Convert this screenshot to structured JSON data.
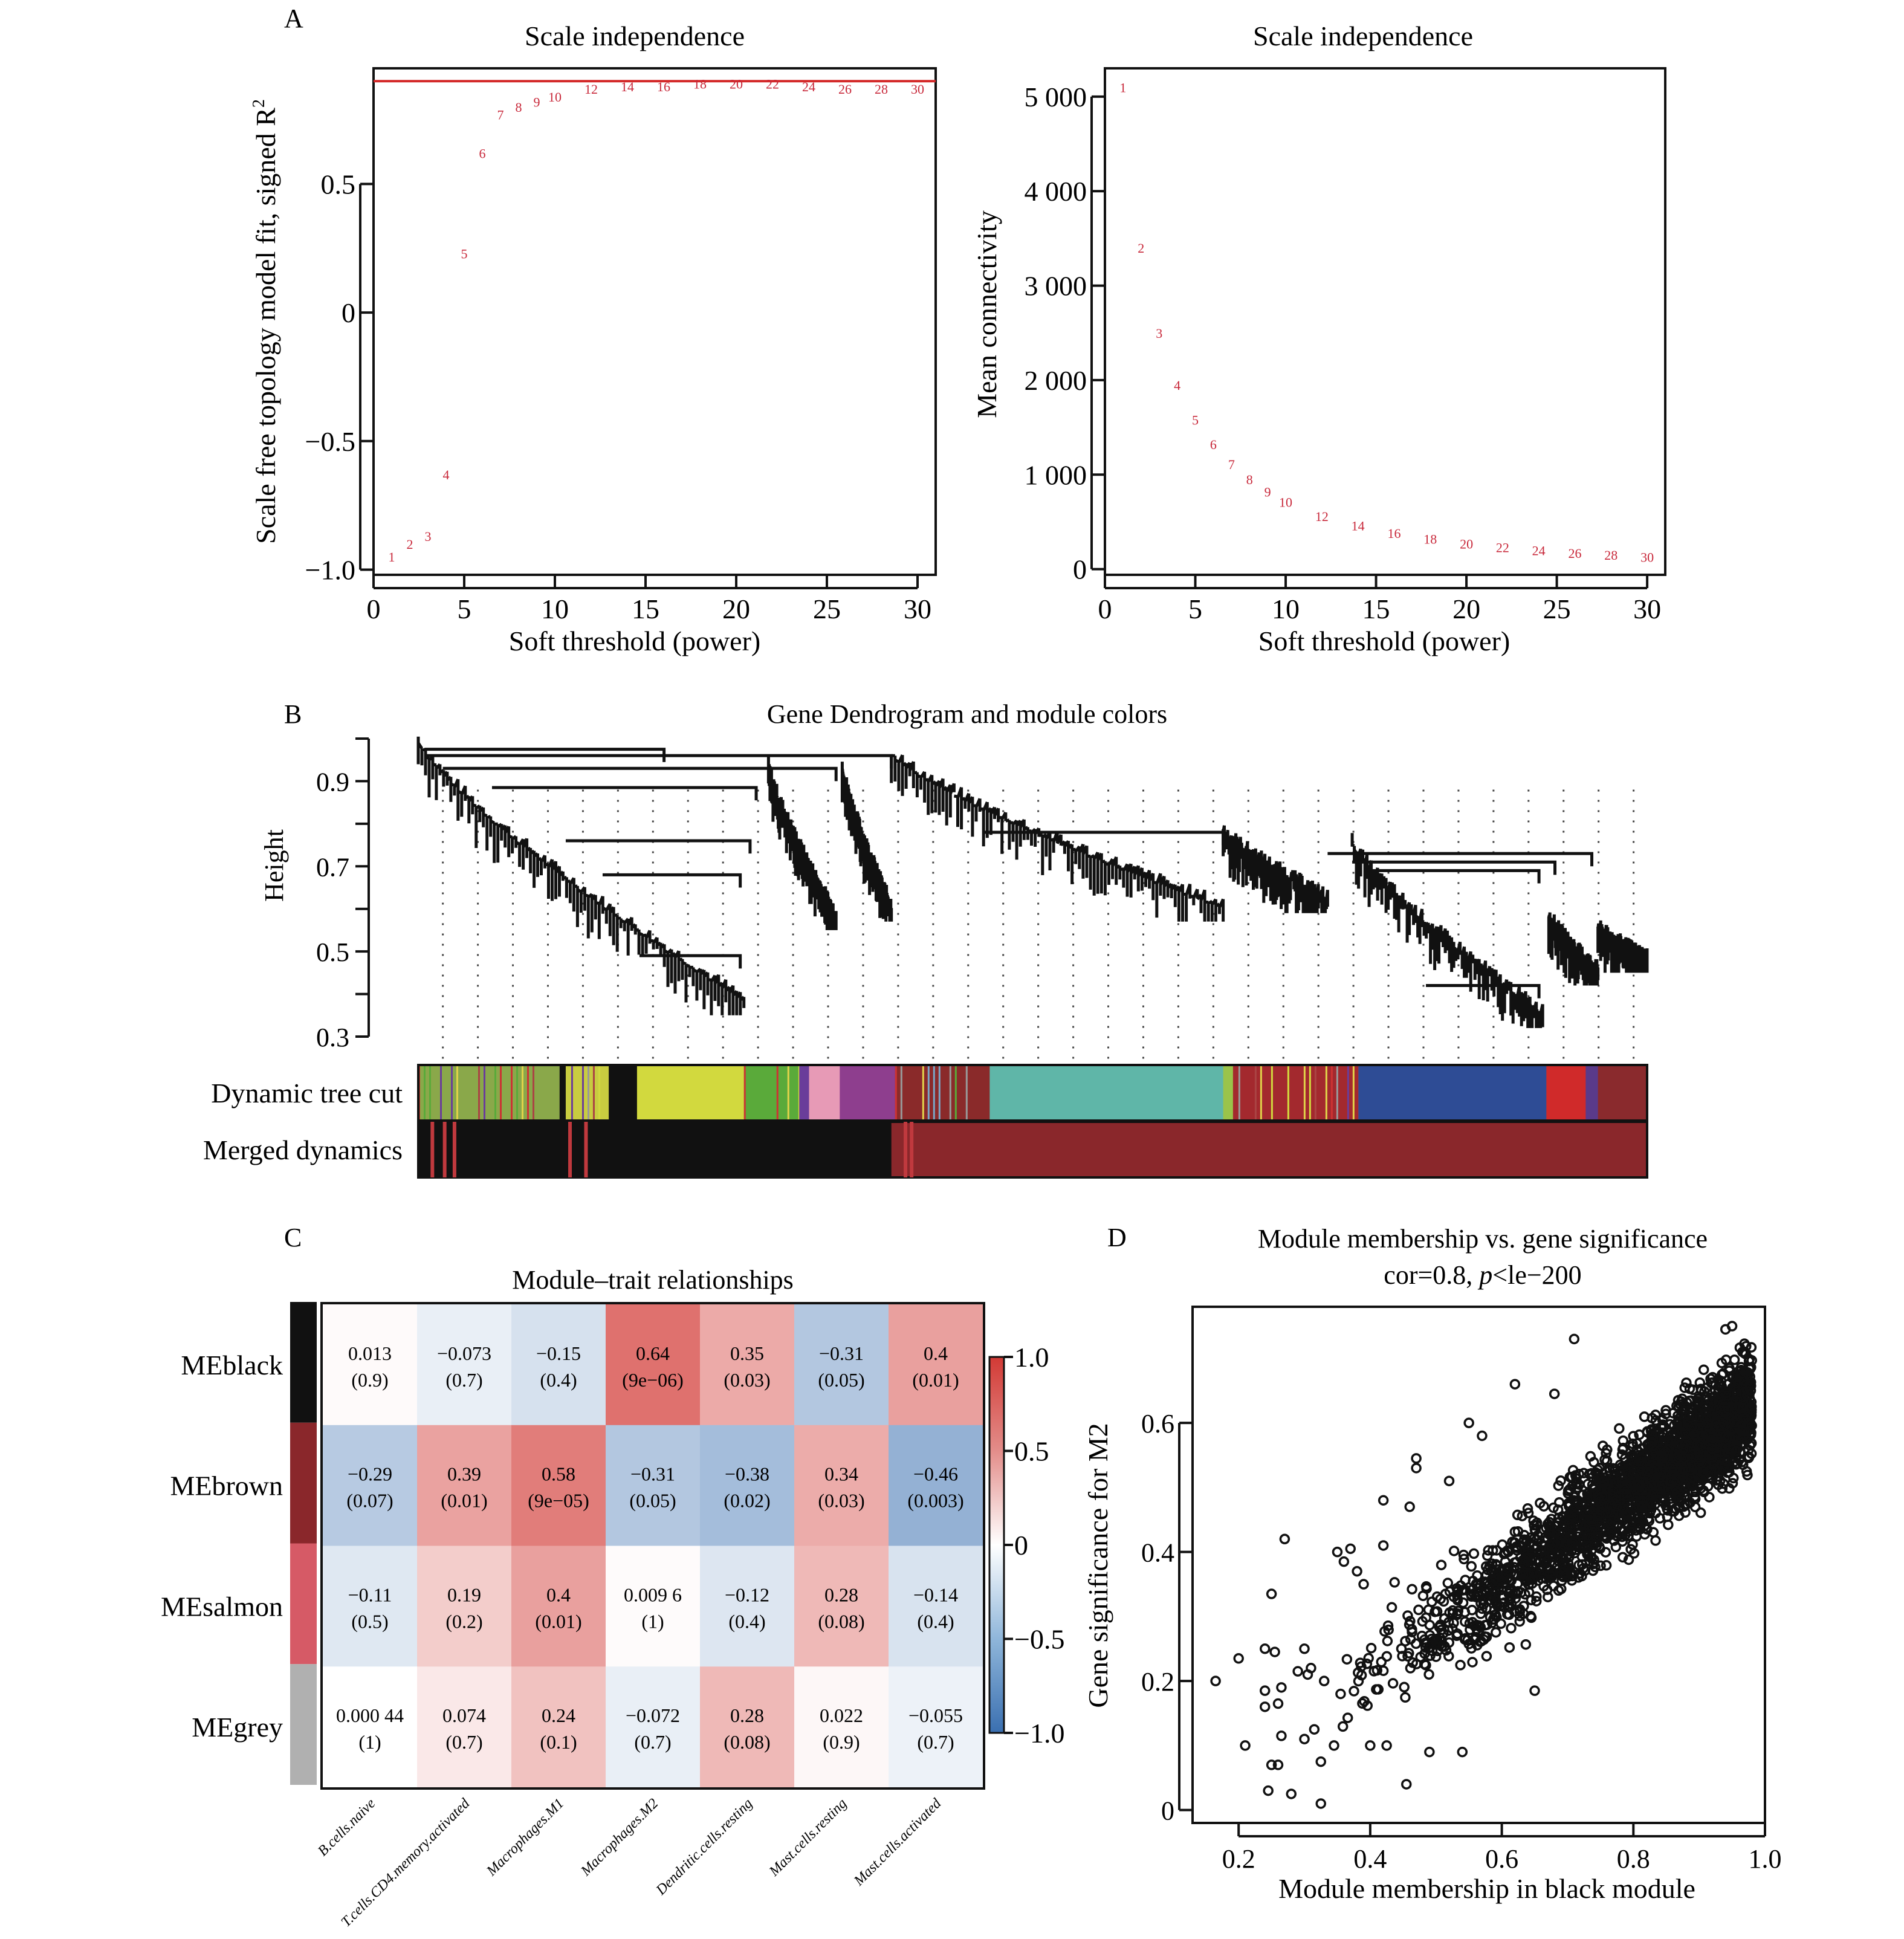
{
  "panel_labels": {
    "a": "A",
    "b": "B",
    "c": "C",
    "d": "D"
  },
  "chart_data": [
    {
      "id": "A1",
      "type": "scatter",
      "title": "Scale independence",
      "xlabel": "Soft threshold (power)",
      "ylabel": "Scale free topology model fit, signed R",
      "ylabel_sup": "2",
      "xlim": [
        0,
        31
      ],
      "ylim": [
        -1.02,
        0.95
      ],
      "xticks": [
        0,
        5,
        10,
        15,
        20,
        25,
        30
      ],
      "yticks": [
        -1.0,
        -0.5,
        0,
        0.5
      ],
      "ytick_labels": [
        "−1.0",
        "−0.5",
        "0",
        "0.5"
      ],
      "hline": {
        "y": 0.9,
        "color": "#d42a2a"
      },
      "marker_color": "#c8283a",
      "points": {
        "x": [
          1,
          2,
          3,
          4,
          5,
          6,
          7,
          8,
          9,
          10,
          12,
          14,
          16,
          18,
          20,
          22,
          24,
          26,
          28,
          30
        ],
        "y": [
          -0.95,
          -0.9,
          -0.87,
          -0.63,
          0.23,
          0.62,
          0.77,
          0.8,
          0.82,
          0.84,
          0.87,
          0.88,
          0.88,
          0.89,
          0.89,
          0.89,
          0.88,
          0.87,
          0.87,
          0.87
        ]
      }
    },
    {
      "id": "A2",
      "type": "scatter",
      "title": "Scale independence",
      "xlabel": "Soft threshold (power)",
      "ylabel": "Mean connectivity",
      "xlim": [
        0,
        31
      ],
      "ylim": [
        -60,
        5300
      ],
      "xticks": [
        0,
        5,
        10,
        15,
        20,
        25,
        30
      ],
      "yticks": [
        0,
        1000,
        2000,
        3000,
        4000,
        5000
      ],
      "ytick_labels": [
        "0",
        "1 000",
        "2 000",
        "3 000",
        "4 000",
        "5 000"
      ],
      "marker_color": "#c8283a",
      "points": {
        "x": [
          1,
          2,
          3,
          4,
          5,
          6,
          7,
          8,
          9,
          10,
          12,
          14,
          16,
          18,
          20,
          22,
          24,
          26,
          28,
          30
        ],
        "y": [
          5100,
          3400,
          2500,
          1950,
          1580,
          1320,
          1110,
          950,
          820,
          710,
          560,
          460,
          380,
          320,
          270,
          230,
          200,
          170,
          150,
          130
        ]
      }
    },
    {
      "id": "B",
      "type": "dendrogram",
      "title": "Gene Dendrogram and module colors",
      "ylabel": "Height",
      "ylim": [
        0.3,
        1.0
      ],
      "yticks": [
        0.3,
        0.5,
        0.7,
        0.9
      ],
      "yticks_minor": [
        0.4,
        0.6,
        0.8,
        1.0
      ],
      "rows": [
        {
          "label": "Dynamic tree cut",
          "segments": [
            {
              "from": 0.0,
              "to": 0.115,
              "color": "#8aa84a",
              "striped": true
            },
            {
              "from": 0.115,
              "to": 0.12,
              "color": "#111111"
            },
            {
              "from": 0.12,
              "to": 0.155,
              "color": "#c8cc40",
              "striped": true
            },
            {
              "from": 0.155,
              "to": 0.178,
              "color": "#111111"
            },
            {
              "from": 0.178,
              "to": 0.265,
              "color": "#d2d93e"
            },
            {
              "from": 0.265,
              "to": 0.31,
              "color": "#5aaa3a",
              "striped": true
            },
            {
              "from": 0.31,
              "to": 0.318,
              "color": "#6a3d9a"
            },
            {
              "from": 0.318,
              "to": 0.343,
              "color": "#e79ab6"
            },
            {
              "from": 0.343,
              "to": 0.388,
              "color": "#8e3e8e"
            },
            {
              "from": 0.388,
              "to": 0.465,
              "color": "#8a2a2a",
              "striped": true
            },
            {
              "from": 0.465,
              "to": 0.655,
              "color": "#5fb6a8"
            },
            {
              "from": 0.655,
              "to": 0.663,
              "color": "#9ac34a"
            },
            {
              "from": 0.663,
              "to": 0.765,
              "color": "#a3292e",
              "striped": true
            },
            {
              "from": 0.765,
              "to": 0.918,
              "color": "#2e4c95"
            },
            {
              "from": 0.918,
              "to": 0.95,
              "color": "#d02a2a"
            },
            {
              "from": 0.95,
              "to": 0.96,
              "color": "#5a3a8a"
            },
            {
              "from": 0.96,
              "to": 1.0,
              "color": "#8a2a2d"
            }
          ]
        },
        {
          "label": "Merged dynamics",
          "segments": [
            {
              "from": 0.0,
              "to": 0.385,
              "color": "#111111"
            },
            {
              "from": 0.385,
              "to": 1.0,
              "color": "#8a272b"
            }
          ]
        }
      ]
    },
    {
      "id": "C",
      "type": "heatmap",
      "title": "Module–trait relationships",
      "rows": [
        "MEblack",
        "MEbrown",
        "MEsalmon",
        "MEgrey"
      ],
      "row_colors": [
        "#111111",
        "#8a272b",
        "#d65a66",
        "#b0b0b0"
      ],
      "columns": [
        "B.cells.naive",
        "T.cells.CD4.memory.activated",
        "Macrophages.M1",
        "Macrophages.M2",
        "Dendritic.cells.resting",
        "Mast.cells.resting",
        "Mast.cells.activated"
      ],
      "values": [
        [
          0.013,
          -0.073,
          -0.15,
          0.64,
          0.35,
          -0.31,
          0.4
        ],
        [
          -0.29,
          0.39,
          0.58,
          -0.31,
          -0.38,
          0.34,
          -0.46
        ],
        [
          -0.11,
          0.19,
          0.4,
          0.0096,
          -0.12,
          0.28,
          -0.14
        ],
        [
          0.00044,
          0.074,
          0.24,
          -0.072,
          0.28,
          0.022,
          -0.055
        ]
      ],
      "value_labels": [
        [
          "0.013",
          "−0.073",
          "−0.15",
          "0.64",
          "0.35",
          "−0.31",
          "0.4"
        ],
        [
          "−0.29",
          "0.39",
          "0.58",
          "−0.31",
          "−0.38",
          "0.34",
          "−0.46"
        ],
        [
          "−0.11",
          "0.19",
          "0.4",
          "0.009 6",
          "−0.12",
          "0.28",
          "−0.14"
        ],
        [
          "0.000 44",
          "0.074",
          "0.24",
          "−0.072",
          "0.28",
          "0.022",
          "−0.055"
        ]
      ],
      "p_labels": [
        [
          "(0.9)",
          "(0.7)",
          "(0.4)",
          "(9e−06)",
          "(0.03)",
          "(0.05)",
          "(0.01)"
        ],
        [
          "(0.07)",
          "(0.01)",
          "(9e−05)",
          "(0.05)",
          "(0.02)",
          "(0.03)",
          "(0.003)"
        ],
        [
          "(0.5)",
          "(0.2)",
          "(0.01)",
          "(1)",
          "(0.4)",
          "(0.08)",
          "(0.4)"
        ],
        [
          "(1)",
          "(0.7)",
          "(0.1)",
          "(0.7)",
          "(0.08)",
          "(0.9)",
          "(0.7)"
        ]
      ],
      "colorbar": {
        "range": [
          -1.0,
          1.0
        ],
        "ticks": [
          1.0,
          0.5,
          0,
          -0.5,
          -1.0
        ],
        "tick_labels": [
          "1.0",
          "0.5",
          "0",
          "−0.5",
          "−1.0"
        ],
        "low_color": "#3a6fb0",
        "mid_color": "#ffffff",
        "high_color": "#d23a35"
      }
    },
    {
      "id": "D",
      "type": "scatter",
      "title": "Module membership vs. gene significance",
      "subtitle_prefix": "cor=0.8, ",
      "subtitle_italic": "p",
      "subtitle_suffix": "<le−200",
      "xlabel": "Module membership in black module",
      "ylabel": "Gene significance for M2",
      "xlim": [
        0.13,
        1.0
      ],
      "ylim": [
        -0.02,
        0.78
      ],
      "xticks": [
        0.2,
        0.4,
        0.6,
        0.8,
        1.0
      ],
      "xtick_labels": [
        "0.2",
        "0.4",
        "0.6",
        "0.8",
        "1.0"
      ],
      "yticks": [
        0,
        0.2,
        0.4,
        0.6
      ],
      "ytick_labels": [
        "0",
        "0.2",
        "0.4",
        "0.6"
      ],
      "correlation": 0.8,
      "n_points_approx": 2500,
      "outlier_points": [
        [
          0.165,
          0.2
        ],
        [
          0.2,
          0.235
        ],
        [
          0.21,
          0.1
        ],
        [
          0.24,
          0.25
        ],
        [
          0.24,
          0.185
        ],
        [
          0.24,
          0.16
        ],
        [
          0.245,
          0.03
        ],
        [
          0.25,
          0.07
        ],
        [
          0.25,
          0.335
        ],
        [
          0.255,
          0.245
        ],
        [
          0.26,
          0.07
        ],
        [
          0.26,
          0.165
        ],
        [
          0.265,
          0.19
        ],
        [
          0.265,
          0.115
        ],
        [
          0.27,
          0.42
        ],
        [
          0.28,
          0.025
        ],
        [
          0.29,
          0.215
        ],
        [
          0.3,
          0.11
        ],
        [
          0.3,
          0.25
        ],
        [
          0.305,
          0.21
        ],
        [
          0.31,
          0.22
        ],
        [
          0.315,
          0.125
        ],
        [
          0.325,
          0.075
        ],
        [
          0.325,
          0.01
        ],
        [
          0.33,
          0.2
        ],
        [
          0.345,
          0.1
        ],
        [
          0.35,
          0.4
        ],
        [
          0.355,
          0.18
        ],
        [
          0.36,
          0.385
        ],
        [
          0.37,
          0.405
        ],
        [
          0.38,
          0.37
        ],
        [
          0.39,
          0.35
        ],
        [
          0.4,
          0.1
        ],
        [
          0.42,
          0.41
        ],
        [
          0.42,
          0.48
        ],
        [
          0.425,
          0.1
        ],
        [
          0.455,
          0.04
        ],
        [
          0.46,
          0.47
        ],
        [
          0.47,
          0.545
        ],
        [
          0.47,
          0.53
        ],
        [
          0.49,
          0.09
        ],
        [
          0.52,
          0.51
        ],
        [
          0.54,
          0.09
        ],
        [
          0.55,
          0.6
        ],
        [
          0.57,
          0.58
        ],
        [
          0.62,
          0.66
        ],
        [
          0.65,
          0.185
        ],
        [
          0.68,
          0.645
        ],
        [
          0.71,
          0.73
        ],
        [
          0.94,
          0.745
        ],
        [
          0.95,
          0.75
        ]
      ]
    }
  ]
}
